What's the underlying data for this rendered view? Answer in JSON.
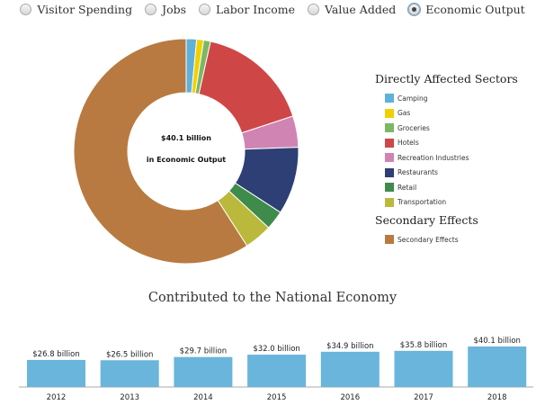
{
  "radios": [
    {
      "label": "Visitor Spending",
      "selected": false
    },
    {
      "label": "Jobs",
      "selected": false
    },
    {
      "label": "Labor Income",
      "selected": false
    },
    {
      "label": "Value Added",
      "selected": false
    },
    {
      "label": "Economic Output",
      "selected": true
    }
  ],
  "chart_data": [
    {
      "type": "pie",
      "title": "$40.1 billion",
      "subtitle": "in Economic Output",
      "unit": "billion USD (estimated)",
      "slices": [
        {
          "label": "Camping",
          "value": 0.6,
          "color": "#5fb1da"
        },
        {
          "label": "Gas",
          "value": 0.4,
          "color": "#f2d000"
        },
        {
          "label": "Groceries",
          "value": 0.4,
          "color": "#7cb864"
        },
        {
          "label": "Hotels",
          "value": 6.6,
          "color": "#cf4647"
        },
        {
          "label": "Recreation Industries",
          "value": 1.8,
          "color": "#d084b4"
        },
        {
          "label": "Restaurants",
          "value": 3.9,
          "color": "#2d3f74"
        },
        {
          "label": "Retail",
          "value": 1.1,
          "color": "#3f8b4b"
        },
        {
          "label": "Transportation",
          "value": 1.6,
          "color": "#bab93c"
        },
        {
          "label": "Secondary Effects",
          "value": 23.7,
          "color": "#b87a40"
        }
      ],
      "legend": {
        "direct_title": "Directly Affected Sectors",
        "secondary_title": "Secondary Effects",
        "placement": "right"
      }
    },
    {
      "type": "bar",
      "title": "Contributed to the National Economy",
      "categories": [
        "2012",
        "2013",
        "2014",
        "2015",
        "2016",
        "2017",
        "2018"
      ],
      "values": [
        26.8,
        26.5,
        29.7,
        32.0,
        34.9,
        35.8,
        40.1
      ],
      "labels": [
        "$26.8 billion",
        "$26.5 billion",
        "$29.7 billion",
        "$32.0 billion",
        "$34.9 billion",
        "$35.8 billion",
        "$40.1 billion"
      ],
      "color": "#69b5dc",
      "ylim": [
        0,
        40.1
      ]
    }
  ]
}
